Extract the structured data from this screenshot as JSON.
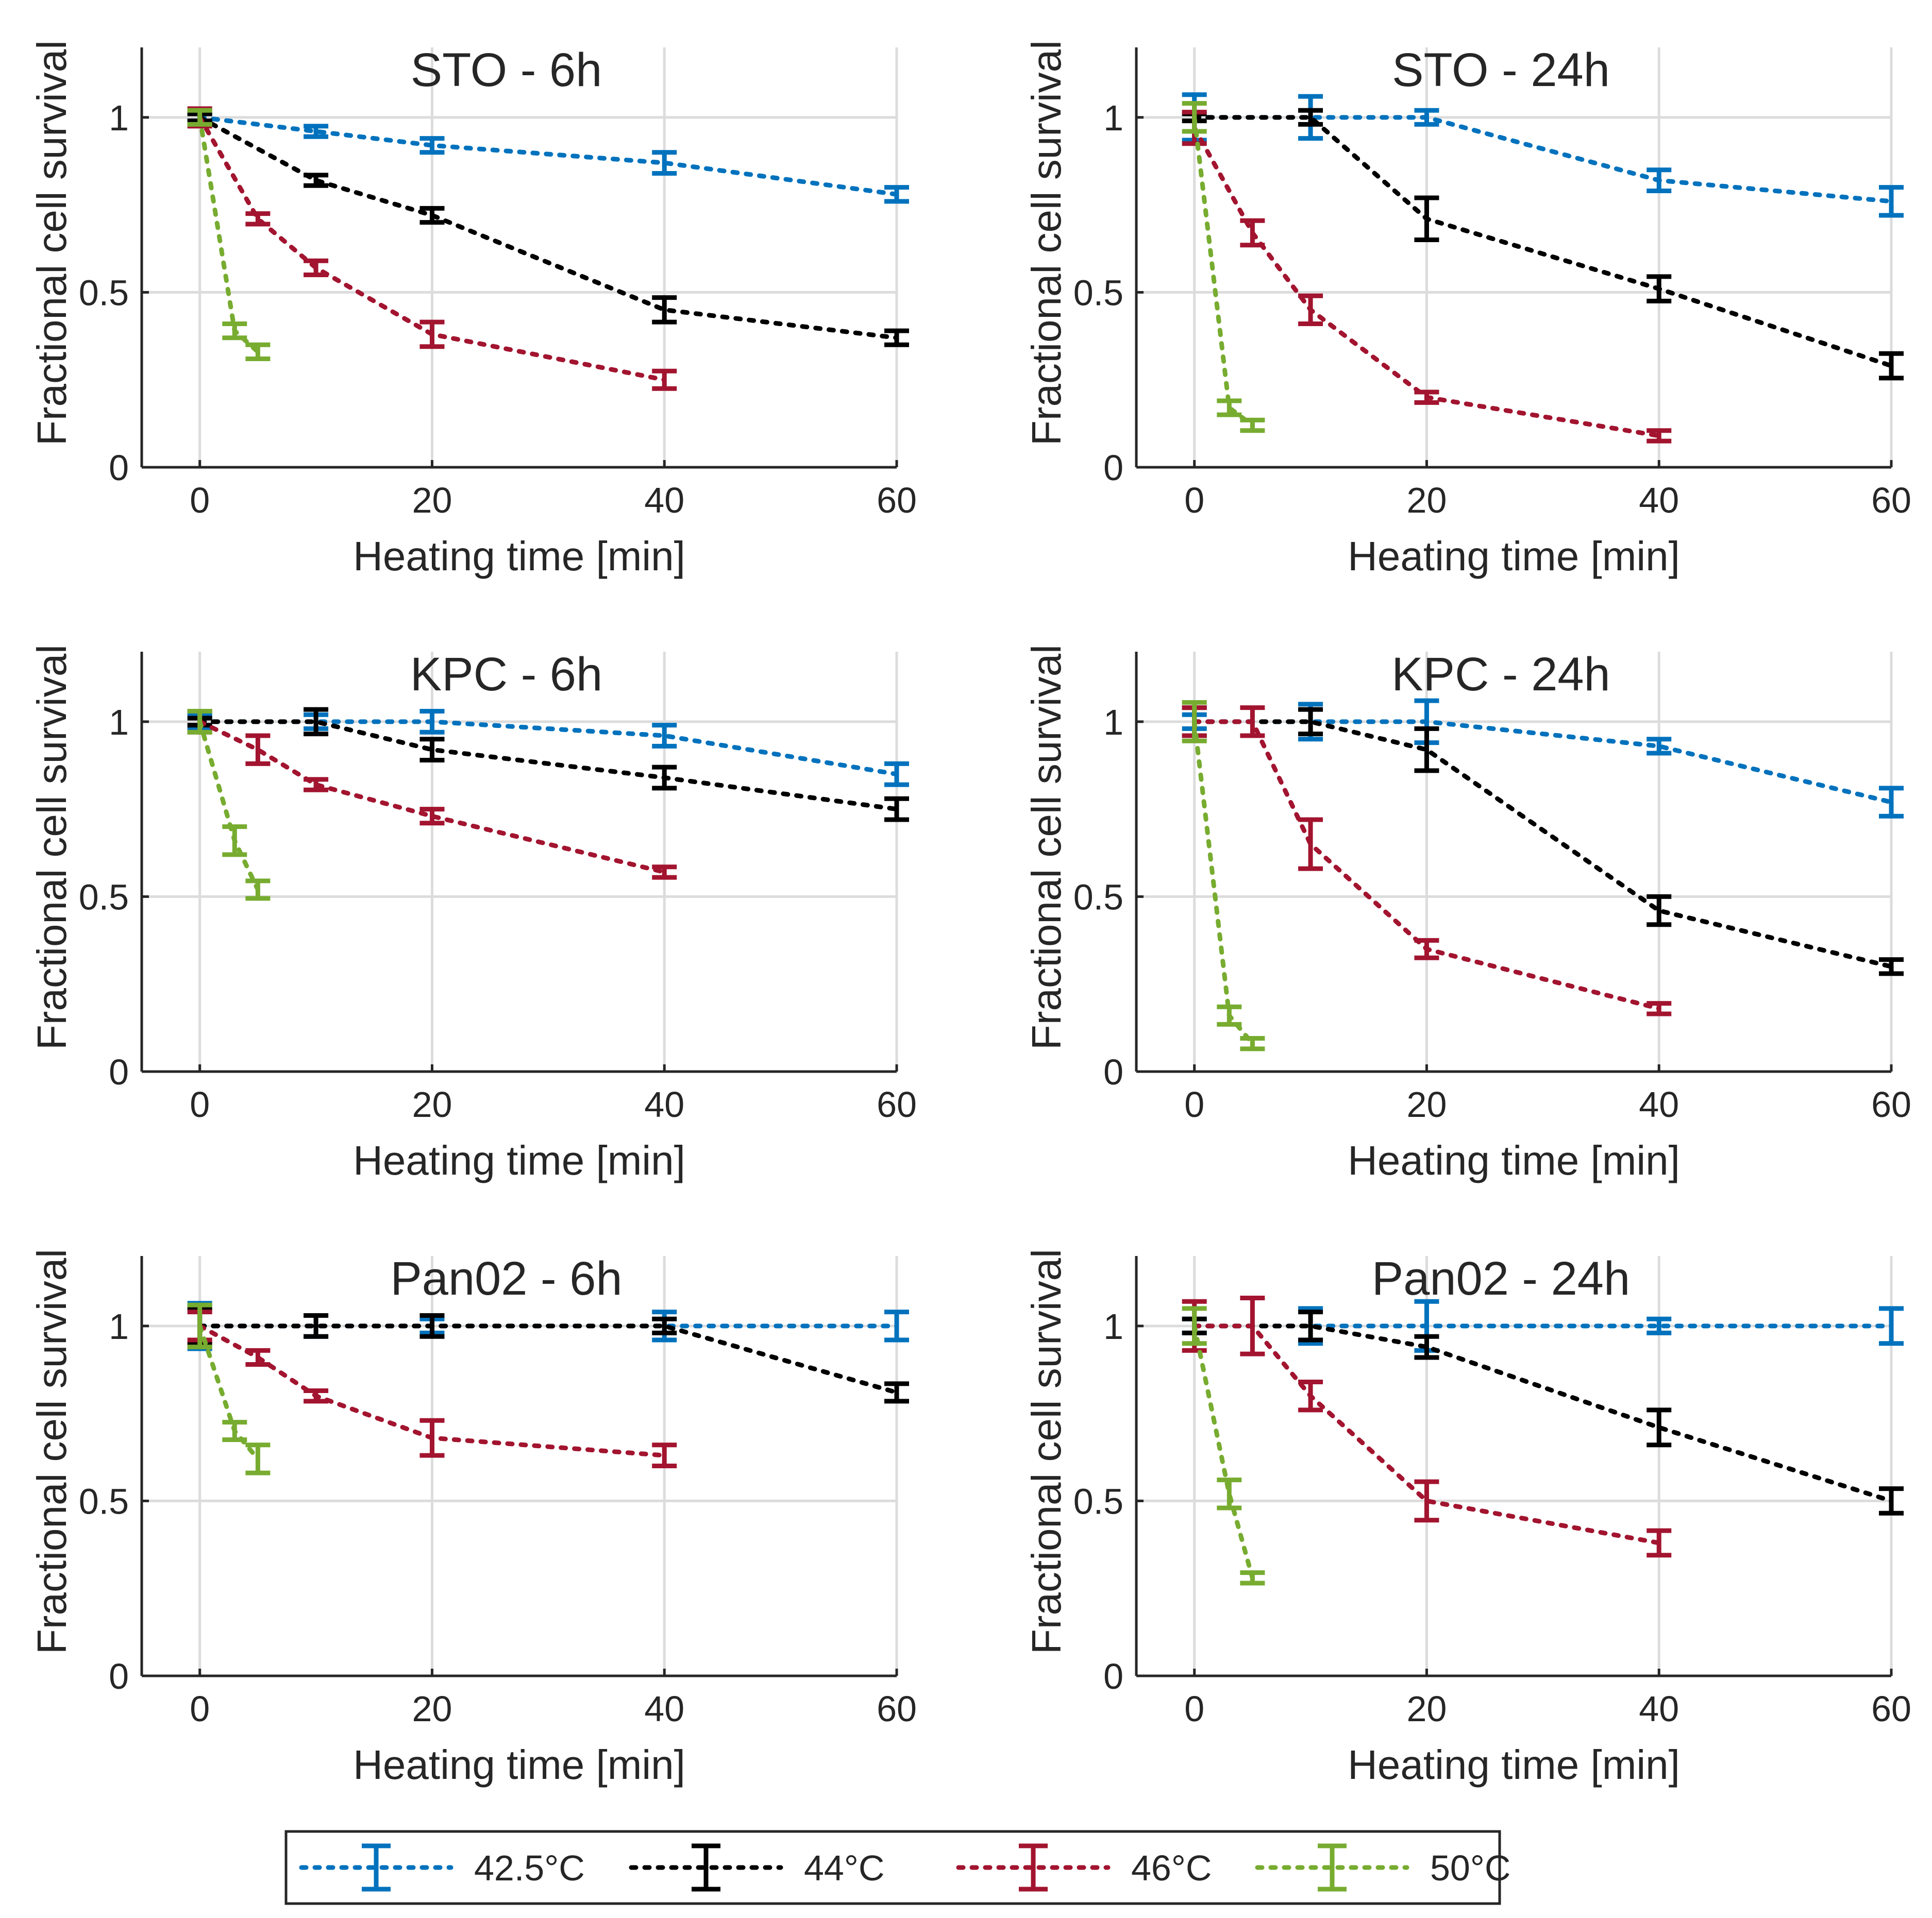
{
  "chart_data": {
    "type": "errorbar-line",
    "xlabel": "Heating time [min]",
    "ylabel": "Fractional cell survival",
    "xlim": [
      -5,
      60
    ],
    "ylim": [
      0,
      1.2
    ],
    "xticks": [
      "0",
      "20",
      "40",
      "60"
    ],
    "yticks": [
      "0",
      "0.5",
      "1"
    ],
    "series_meta": [
      {
        "name": "42.5°C",
        "color": "#0072BD"
      },
      {
        "name": "44°C",
        "color": "#000000"
      },
      {
        "name": "46°C",
        "color": "#A2142F"
      },
      {
        "name": "50°C",
        "color": "#77AC30"
      }
    ],
    "panels": [
      {
        "title": "STO - 6h",
        "series": [
          {
            "name": "42.5°C",
            "points": [
              [
                0,
                1.0,
                0.01
              ],
              [
                10,
                0.96,
                0.015
              ],
              [
                20,
                0.92,
                0.02
              ],
              [
                40,
                0.87,
                0.03
              ],
              [
                60,
                0.78,
                0.02
              ]
            ]
          },
          {
            "name": "44°C",
            "points": [
              [
                0,
                1.0,
                0.01
              ],
              [
                10,
                0.82,
                0.015
              ],
              [
                20,
                0.72,
                0.02
              ],
              [
                40,
                0.45,
                0.035
              ],
              [
                60,
                0.37,
                0.02
              ]
            ]
          },
          {
            "name": "46°C",
            "points": [
              [
                0,
                1.0,
                0.025
              ],
              [
                5,
                0.71,
                0.015
              ],
              [
                10,
                0.57,
                0.02
              ],
              [
                20,
                0.38,
                0.035
              ],
              [
                40,
                0.25,
                0.025
              ]
            ]
          },
          {
            "name": "50°C",
            "points": [
              [
                0,
                1.0,
                0.02
              ],
              [
                3,
                0.39,
                0.02
              ],
              [
                5,
                0.33,
                0.02
              ]
            ]
          }
        ]
      },
      {
        "title": "STO - 24h",
        "series": [
          {
            "name": "42.5°C",
            "points": [
              [
                0,
                1.0,
                0.065
              ],
              [
                10,
                1.0,
                0.06
              ],
              [
                20,
                1.0,
                0.02
              ],
              [
                40,
                0.82,
                0.03
              ],
              [
                60,
                0.76,
                0.04
              ]
            ]
          },
          {
            "name": "44°C",
            "points": [
              [
                0,
                1.0,
                0.01
              ],
              [
                10,
                1.0,
                0.02
              ],
              [
                20,
                0.71,
                0.06
              ],
              [
                40,
                0.51,
                0.035
              ],
              [
                60,
                0.29,
                0.035
              ]
            ]
          },
          {
            "name": "46°C",
            "points": [
              [
                0,
                0.97,
                0.045
              ],
              [
                5,
                0.67,
                0.035
              ],
              [
                10,
                0.45,
                0.04
              ],
              [
                20,
                0.2,
                0.015
              ],
              [
                40,
                0.09,
                0.015
              ]
            ]
          },
          {
            "name": "50°C",
            "points": [
              [
                0,
                1.0,
                0.04
              ],
              [
                3,
                0.17,
                0.02
              ],
              [
                5,
                0.12,
                0.015
              ]
            ]
          }
        ]
      },
      {
        "title": "KPC - 6h",
        "series": [
          {
            "name": "42.5°C",
            "points": [
              [
                0,
                1.0,
                0.02
              ],
              [
                10,
                1.0,
                0.02
              ],
              [
                20,
                1.0,
                0.03
              ],
              [
                40,
                0.96,
                0.03
              ],
              [
                60,
                0.85,
                0.03
              ]
            ]
          },
          {
            "name": "44°C",
            "points": [
              [
                0,
                1.0,
                0.01
              ],
              [
                10,
                1.0,
                0.035
              ],
              [
                20,
                0.92,
                0.03
              ],
              [
                40,
                0.84,
                0.03
              ],
              [
                60,
                0.75,
                0.03
              ]
            ]
          },
          {
            "name": "46°C",
            "points": [
              [
                0,
                1.0,
                0.03
              ],
              [
                5,
                0.92,
                0.04
              ],
              [
                10,
                0.82,
                0.015
              ],
              [
                20,
                0.73,
                0.02
              ],
              [
                40,
                0.57,
                0.015
              ]
            ]
          },
          {
            "name": "50°C",
            "points": [
              [
                0,
                1.0,
                0.03
              ],
              [
                3,
                0.66,
                0.04
              ],
              [
                5,
                0.52,
                0.025
              ]
            ]
          }
        ]
      },
      {
        "title": "KPC - 24h",
        "series": [
          {
            "name": "42.5°C",
            "points": [
              [
                0,
                1.0,
                0.02
              ],
              [
                10,
                1.0,
                0.05
              ],
              [
                20,
                1.0,
                0.06
              ],
              [
                40,
                0.93,
                0.02
              ],
              [
                60,
                0.77,
                0.04
              ]
            ]
          },
          {
            "name": "44°C",
            "points": [
              [
                0,
                1.0,
                0.04
              ],
              [
                10,
                1.0,
                0.035
              ],
              [
                20,
                0.92,
                0.06
              ],
              [
                40,
                0.46,
                0.04
              ],
              [
                60,
                0.3,
                0.02
              ]
            ]
          },
          {
            "name": "46°C",
            "points": [
              [
                0,
                1.0,
                0.04
              ],
              [
                5,
                1.0,
                0.04
              ],
              [
                10,
                0.65,
                0.07
              ],
              [
                20,
                0.35,
                0.025
              ],
              [
                40,
                0.18,
                0.015
              ]
            ]
          },
          {
            "name": "50°C",
            "points": [
              [
                0,
                1.0,
                0.055
              ],
              [
                3,
                0.16,
                0.025
              ],
              [
                5,
                0.08,
                0.015
              ]
            ]
          }
        ]
      },
      {
        "title": "Pan02 - 6h",
        "series": [
          {
            "name": "42.5°C",
            "points": [
              [
                0,
                1.0,
                0.065
              ],
              [
                10,
                1.0,
                0.03
              ],
              [
                20,
                1.0,
                0.02
              ],
              [
                40,
                1.0,
                0.04
              ],
              [
                60,
                1.0,
                0.04
              ]
            ]
          },
          {
            "name": "44°C",
            "points": [
              [
                0,
                1.0,
                0.05
              ],
              [
                10,
                1.0,
                0.03
              ],
              [
                20,
                1.0,
                0.03
              ],
              [
                40,
                1.0,
                0.02
              ],
              [
                60,
                0.81,
                0.025
              ]
            ]
          },
          {
            "name": "46°C",
            "points": [
              [
                0,
                1.0,
                0.04
              ],
              [
                5,
                0.91,
                0.02
              ],
              [
                10,
                0.8,
                0.015
              ],
              [
                20,
                0.68,
                0.05
              ],
              [
                40,
                0.63,
                0.03
              ]
            ]
          },
          {
            "name": "50°C",
            "points": [
              [
                0,
                1.0,
                0.06
              ],
              [
                3,
                0.7,
                0.025
              ],
              [
                5,
                0.62,
                0.04
              ]
            ]
          }
        ]
      },
      {
        "title": "Pan02 - 24h",
        "series": [
          {
            "name": "42.5°C",
            "points": [
              [
                0,
                1.0,
                0.02
              ],
              [
                10,
                1.0,
                0.05
              ],
              [
                20,
                1.0,
                0.07
              ],
              [
                40,
                1.0,
                0.02
              ],
              [
                60,
                1.0,
                0.05
              ]
            ]
          },
          {
            "name": "44°C",
            "points": [
              [
                0,
                1.0,
                0.02
              ],
              [
                10,
                1.0,
                0.04
              ],
              [
                20,
                0.94,
                0.03
              ],
              [
                40,
                0.71,
                0.05
              ],
              [
                60,
                0.5,
                0.035
              ]
            ]
          },
          {
            "name": "46°C",
            "points": [
              [
                0,
                1.0,
                0.07
              ],
              [
                5,
                1.0,
                0.08
              ],
              [
                10,
                0.8,
                0.04
              ],
              [
                20,
                0.5,
                0.055
              ],
              [
                40,
                0.38,
                0.035
              ]
            ]
          },
          {
            "name": "50°C",
            "points": [
              [
                0,
                1.0,
                0.05
              ],
              [
                3,
                0.52,
                0.04
              ],
              [
                5,
                0.28,
                0.015
              ]
            ]
          }
        ]
      }
    ]
  }
}
